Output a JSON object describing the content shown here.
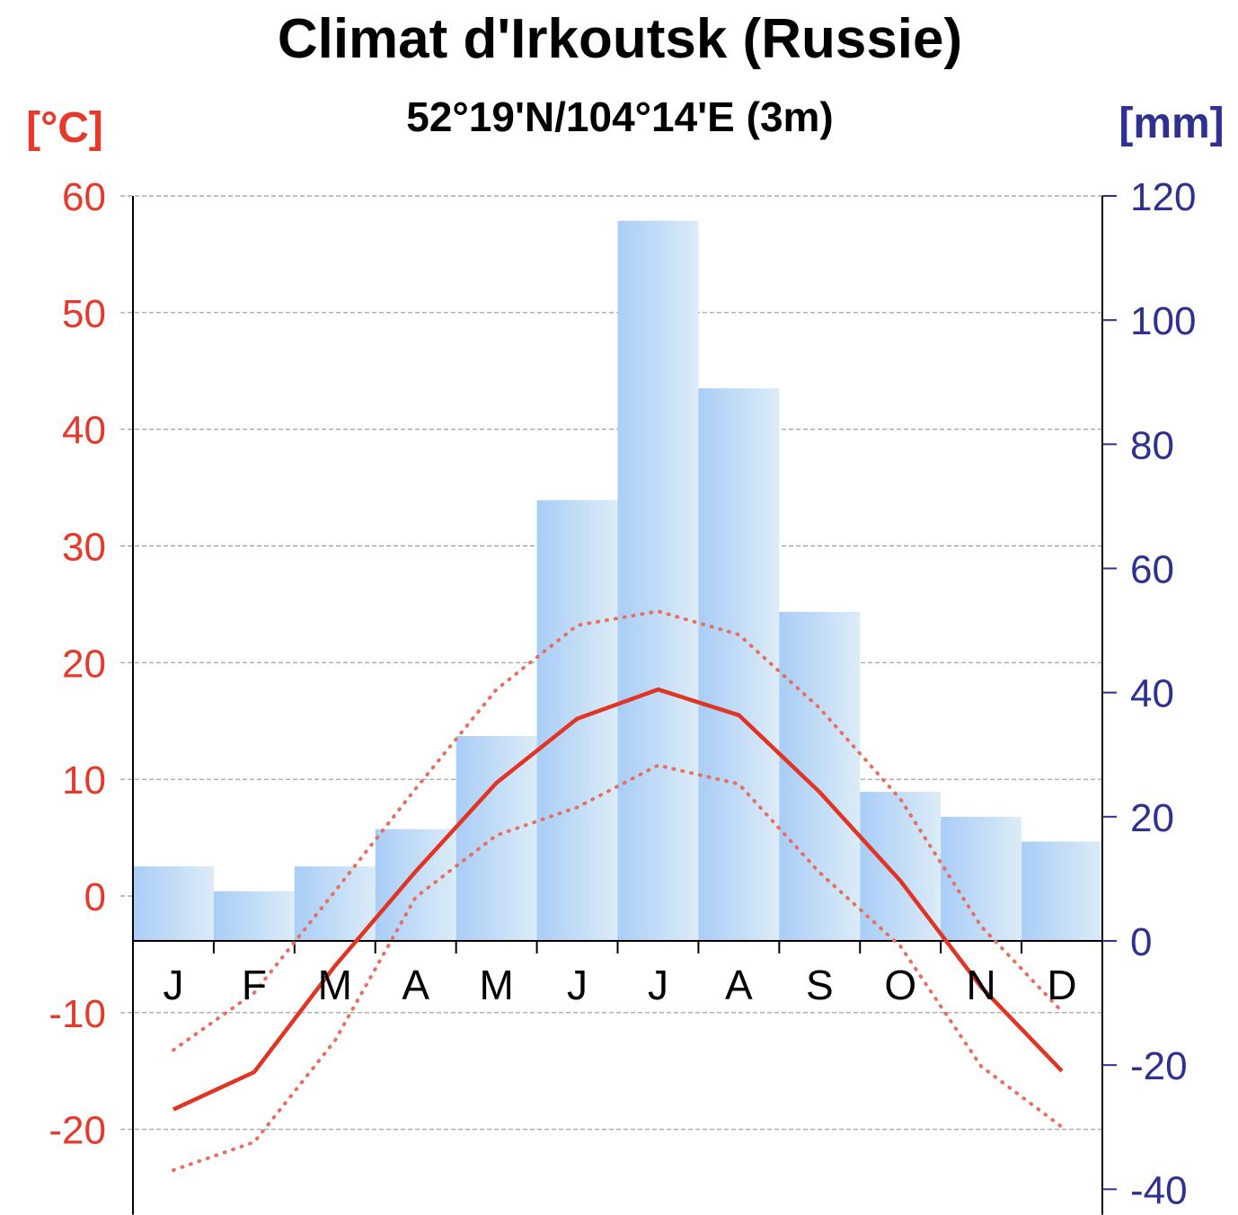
{
  "chart_data": {
    "type": "bar",
    "title": "Climat d'Irkoutsk (Russie)",
    "subtitle": "52°19'N/104°14'E (3m)",
    "left_axis": {
      "unit": "[°C]",
      "range": [
        -25,
        60
      ],
      "ticks": [
        60,
        50,
        40,
        30,
        20,
        10,
        0,
        -10,
        -20
      ],
      "color": "#e53a2b"
    },
    "right_axis": {
      "unit": "[mm]",
      "range": [
        -40,
        120
      ],
      "ticks": [
        120,
        100,
        80,
        60,
        40,
        20,
        0,
        -20,
        -40
      ],
      "color": "#2e3192"
    },
    "categories": [
      "J",
      "F",
      "M",
      "A",
      "M",
      "J",
      "J",
      "A",
      "S",
      "O",
      "N",
      "D"
    ],
    "grid": true,
    "series": [
      {
        "kind": "bar",
        "axis": "right",
        "values": [
          12,
          8,
          12,
          18,
          33,
          71,
          116,
          89,
          53,
          24,
          20,
          16
        ],
        "color": "#a9cdf7"
      },
      {
        "kind": "line",
        "axis": "left",
        "style": "solid",
        "values": [
          -18.3,
          -15.1,
          -6.0,
          2.1,
          9.7,
          15.2,
          17.7,
          15.5,
          8.9,
          1.3,
          -7.8,
          -15.0
        ],
        "color": "#e03425"
      },
      {
        "kind": "line",
        "axis": "left",
        "style": "dotted",
        "values": [
          -13.2,
          -8.3,
          0.4,
          9.2,
          17.7,
          23.2,
          24.4,
          22.4,
          16.1,
          8.3,
          -2.6,
          -9.9
        ],
        "color": "#e67062"
      },
      {
        "kind": "line",
        "axis": "left",
        "style": "dotted",
        "values": [
          -23.5,
          -21.1,
          -12.4,
          -0.1,
          5.2,
          7.6,
          11.2,
          9.6,
          2.0,
          -4.3,
          -14.6,
          -19.8
        ],
        "color": "#e67062"
      }
    ]
  }
}
